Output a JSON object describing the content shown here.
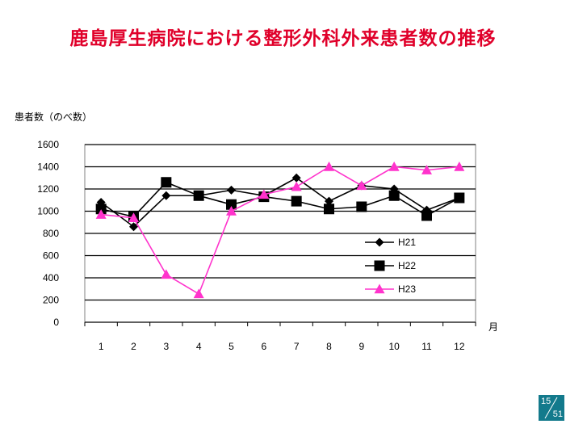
{
  "slide": {
    "title": "鹿島厚生病院における整形外科外来患者数の推移",
    "page_current": "15",
    "page_total": "51"
  },
  "chart_data": {
    "type": "line",
    "ylabel": "患者数（のべ数）",
    "xlabel": "月",
    "categories": [
      "1",
      "2",
      "3",
      "4",
      "5",
      "6",
      "7",
      "8",
      "9",
      "10",
      "11",
      "12"
    ],
    "ylim": [
      0,
      1600
    ],
    "yticks": [
      0,
      200,
      400,
      600,
      800,
      1000,
      1200,
      1400,
      1600
    ],
    "grid": true,
    "legend_position": "center-right",
    "series": [
      {
        "name": "H21",
        "marker": "diamond",
        "color": "#000000",
        "values": [
          1080,
          860,
          1140,
          1140,
          1190,
          1140,
          1300,
          1090,
          1230,
          1200,
          1010,
          1120
        ]
      },
      {
        "name": "H22",
        "marker": "square",
        "color": "#000000",
        "values": [
          1020,
          950,
          1260,
          1140,
          1060,
          1130,
          1090,
          1020,
          1040,
          1140,
          960,
          1120
        ]
      },
      {
        "name": "H23",
        "marker": "triangle",
        "color": "#ff33cc",
        "values": [
          970,
          940,
          430,
          255,
          1000,
          1150,
          1220,
          1400,
          1230,
          1400,
          1370,
          1400
        ]
      }
    ]
  }
}
